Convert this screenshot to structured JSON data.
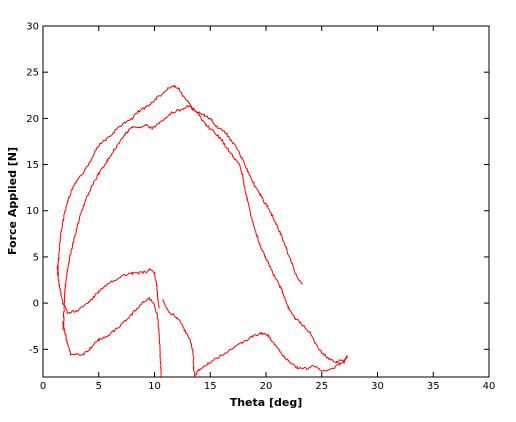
{
  "chart_data": {
    "type": "line",
    "xlabel": "Theta [deg]",
    "ylabel": "Force Applied [N]",
    "xlim": [
      0,
      40
    ],
    "ylim": [
      -8,
      30
    ],
    "x_ticks": [
      "0",
      "5",
      "10",
      "15",
      "20",
      "25",
      "30",
      "35",
      "40"
    ],
    "y_ticks": [
      "-5",
      "0",
      "5",
      "10",
      "15",
      "20",
      "25",
      "30"
    ],
    "grid": false,
    "legend": "none",
    "series": [
      {
        "color": "#ff0000",
        "style": "noisy",
        "x": [
          1.3,
          1.5,
          1.8,
          2.2,
          2.7,
          3.2,
          3.7,
          4.3,
          4.8,
          5.4,
          6.0,
          6.6,
          7.3,
          8.0,
          8.6,
          9.2,
          9.7,
          10.2,
          10.7,
          11.2,
          11.8,
          12.2,
          12.6,
          13.0,
          13.4,
          14.0,
          14.5,
          15.1,
          15.7,
          16.3,
          16.8,
          17.3,
          17.8,
          18.3,
          18.7,
          19.1,
          19.5,
          19.8,
          20.1,
          20.5,
          20.9,
          21.3,
          21.8,
          22.2,
          22.5,
          22.8,
          23.1,
          23.3
        ],
        "y": [
          3.0,
          6.5,
          9.0,
          11.0,
          12.5,
          13.5,
          14.2,
          15.5,
          16.8,
          17.5,
          18.0,
          18.8,
          19.5,
          20.0,
          20.8,
          21.2,
          21.6,
          22.2,
          22.6,
          23.2,
          23.5,
          23.2,
          22.3,
          21.8,
          21.0,
          20.6,
          20.3,
          19.8,
          19.0,
          18.5,
          17.7,
          16.9,
          15.8,
          14.5,
          13.4,
          12.5,
          11.7,
          11.0,
          10.5,
          9.6,
          8.6,
          7.5,
          6.0,
          4.7,
          3.6,
          2.8,
          2.4,
          2.1
        ]
      },
      {
        "color": "#ff0000",
        "style": "noisy",
        "x": [
          1.8,
          2.0,
          2.4,
          3.0,
          3.6,
          4.3,
          5.0,
          5.8,
          6.6,
          7.4,
          8.0,
          8.6,
          9.2,
          9.8,
          10.4,
          11.0,
          11.5,
          12.0,
          12.6,
          13.0,
          13.5,
          14.0,
          14.6,
          15.3,
          16.0,
          16.6,
          17.2,
          17.6,
          17.9,
          18.0,
          18.3,
          18.7,
          19.2,
          19.7,
          20.2,
          20.7,
          21.2,
          21.7,
          22.0,
          22.6,
          23.3,
          24.0,
          24.6,
          25.2,
          25.8,
          26.3,
          26.7,
          27.0,
          27.2,
          27.3
        ],
        "y": [
          -3.0,
          2.0,
          5.0,
          8.0,
          10.5,
          12.5,
          14.0,
          15.5,
          17.0,
          18.3,
          19.0,
          19.1,
          19.3,
          18.9,
          19.5,
          20.1,
          20.6,
          20.8,
          21.1,
          21.3,
          21.0,
          20.3,
          19.3,
          18.6,
          17.7,
          16.6,
          15.6,
          15.0,
          14.0,
          13.0,
          11.3,
          9.3,
          7.2,
          5.6,
          4.3,
          3.1,
          2.0,
          0.6,
          -0.5,
          -1.6,
          -2.4,
          -3.3,
          -4.7,
          -5.6,
          -6.1,
          -6.4,
          -6.2,
          -6.4,
          -6.1,
          -5.8
        ]
      },
      {
        "color": "#ff0000",
        "style": "noisy",
        "x": [
          1.3,
          1.4,
          1.6,
          1.8,
          2.2,
          3.0,
          4.0,
          5.0,
          6.0,
          7.0,
          8.0,
          9.0,
          9.6,
          10.0,
          10.2,
          10.3,
          10.4
        ],
        "y": [
          4.0,
          2.5,
          1.0,
          0.0,
          -1.0,
          -0.9,
          0.0,
          1.2,
          2.2,
          2.9,
          3.2,
          3.3,
          3.6,
          3.2,
          2.0,
          0.5,
          -0.5
        ]
      },
      {
        "color": "#ff0000",
        "style": "noisy",
        "x": [
          1.8,
          2.1,
          2.5,
          3.0,
          3.6,
          4.3,
          5.0,
          5.8,
          6.6,
          7.4,
          8.3,
          9.0,
          9.5,
          9.9,
          10.2,
          10.4,
          10.5,
          10.6
        ],
        "y": [
          -2.0,
          -4.0,
          -5.5,
          -5.5,
          -5.6,
          -4.8,
          -4.0,
          -3.5,
          -2.8,
          -1.9,
          -0.8,
          0.1,
          0.5,
          0.0,
          -1.0,
          -3.0,
          -5.5,
          -8.0
        ]
      },
      {
        "color": "#ff0000",
        "style": "noisy",
        "x": [
          10.7,
          11.2,
          12.0,
          12.5,
          12.8,
          13.0,
          13.2,
          13.4,
          13.5,
          13.5,
          13.6,
          13.6
        ],
        "y": [
          0.5,
          -0.8,
          -1.6,
          -2.4,
          -3.2,
          -3.5,
          -4.0,
          -5.0,
          -6.0,
          -7.0,
          -7.6,
          -8.0
        ]
      },
      {
        "color": "#ff0000",
        "style": "noisy",
        "x": [
          13.6,
          14.0,
          14.8,
          15.8,
          16.8,
          17.8,
          18.8,
          19.6,
          20.2,
          20.8,
          21.4,
          22.0,
          22.8,
          23.6,
          24.4,
          25.2,
          26.0,
          26.6,
          27.0,
          27.2,
          27.3
        ],
        "y": [
          -7.8,
          -7.2,
          -6.6,
          -5.8,
          -5.1,
          -4.3,
          -3.6,
          -3.3,
          -3.5,
          -4.5,
          -5.5,
          -6.3,
          -7.0,
          -7.1,
          -6.8,
          -7.4,
          -7.1,
          -6.6,
          -6.3,
          -5.9,
          -5.6
        ]
      }
    ]
  }
}
